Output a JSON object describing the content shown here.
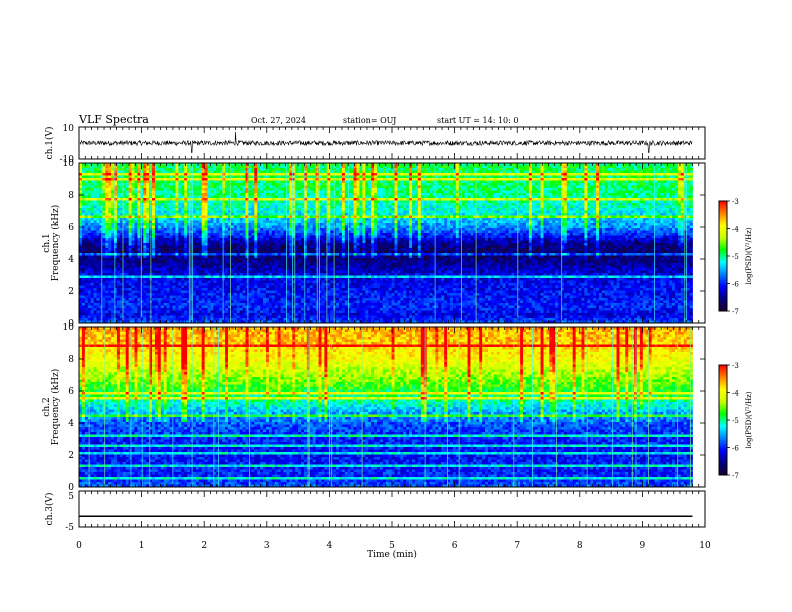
{
  "header": {
    "title": "VLF Spectra",
    "date": "Oct. 27, 2024",
    "station": "station= OUJ",
    "start": "start  UT =   14: 10: 0"
  },
  "colors": {
    "spectrogram_scale": [
      "#1a0033",
      "#000080",
      "#0000ff",
      "#0080ff",
      "#00ffff",
      "#00ff00",
      "#c8ff00",
      "#ffff00",
      "#ff8000",
      "#ff0000"
    ],
    "waveform": "#000000"
  },
  "chart_data": [
    {
      "type": "line",
      "name": "ch1-waveform",
      "ylabel": "ch.1(V)",
      "ylim": [
        -10,
        10
      ],
      "yticks": [
        "10",
        "-10"
      ],
      "xlim": [
        0,
        10
      ],
      "description_values": {
        "baseline": 0,
        "typical_amplitude": 1.5,
        "spikes_at_min": [
          1.8,
          2.5,
          9.1
        ]
      }
    },
    {
      "type": "heatmap",
      "name": "ch1-spectrogram",
      "ylabel": "ch.1\nFrequency (kHz)",
      "ylim": [
        0,
        10
      ],
      "yticks": [
        "10",
        "8",
        "6",
        "4",
        "2",
        "0"
      ],
      "xlim": [
        0,
        10
      ],
      "data_extent_min": 9.8,
      "log_psd_profile": {
        "freq_khz": [
          0,
          0.5,
          1,
          2,
          3,
          3.5,
          4,
          4.5,
          5,
          5.5,
          6,
          7,
          8,
          9,
          10
        ],
        "level": [
          -5.8,
          -6.2,
          -6.0,
          -6.1,
          -6.2,
          -6.4,
          -6.6,
          -6.7,
          -6.5,
          -6.0,
          -5.6,
          -5.2,
          -5.0,
          -4.9,
          -4.9
        ]
      },
      "colorbar": {
        "label": "log(PSD)(V²/Hz)",
        "min": -7,
        "max": -3,
        "ticks": [
          "-3",
          "-4",
          "-5",
          "-6",
          "-7"
        ]
      }
    },
    {
      "type": "heatmap",
      "name": "ch2-spectrogram",
      "ylabel": "ch.2\nFrequency (kHz)",
      "ylim": [
        0,
        10
      ],
      "yticks": [
        "10",
        "8",
        "6",
        "4",
        "2",
        "0"
      ],
      "xlim": [
        0,
        10
      ],
      "data_extent_min": 9.8,
      "log_psd_profile": {
        "freq_khz": [
          0,
          0.5,
          1,
          2,
          3,
          4,
          4.5,
          5,
          5.5,
          6,
          7,
          8,
          9,
          10
        ],
        "level": [
          -5.8,
          -6.0,
          -6.0,
          -6.1,
          -6.0,
          -5.8,
          -5.6,
          -5.3,
          -5.0,
          -4.8,
          -4.4,
          -4.0,
          -3.7,
          -3.6
        ]
      },
      "colorbar": {
        "label": "log(PSD)(V²/Hz)",
        "min": -7,
        "max": -3,
        "ticks": [
          "-3",
          "-4",
          "-5",
          "-6",
          "-7"
        ]
      }
    },
    {
      "type": "line",
      "name": "ch3-waveform",
      "ylabel": "ch.3(V)",
      "ylim": [
        -5,
        5
      ],
      "yticks": [
        "5",
        "-5"
      ],
      "xlim": [
        0,
        10
      ],
      "x": [
        0,
        9.8
      ],
      "y": [
        -2,
        -2
      ]
    }
  ],
  "xaxis": {
    "label": "Time (min)",
    "ticks": [
      "0",
      "1",
      "2",
      "3",
      "4",
      "5",
      "6",
      "7",
      "8",
      "9",
      "10"
    ]
  }
}
